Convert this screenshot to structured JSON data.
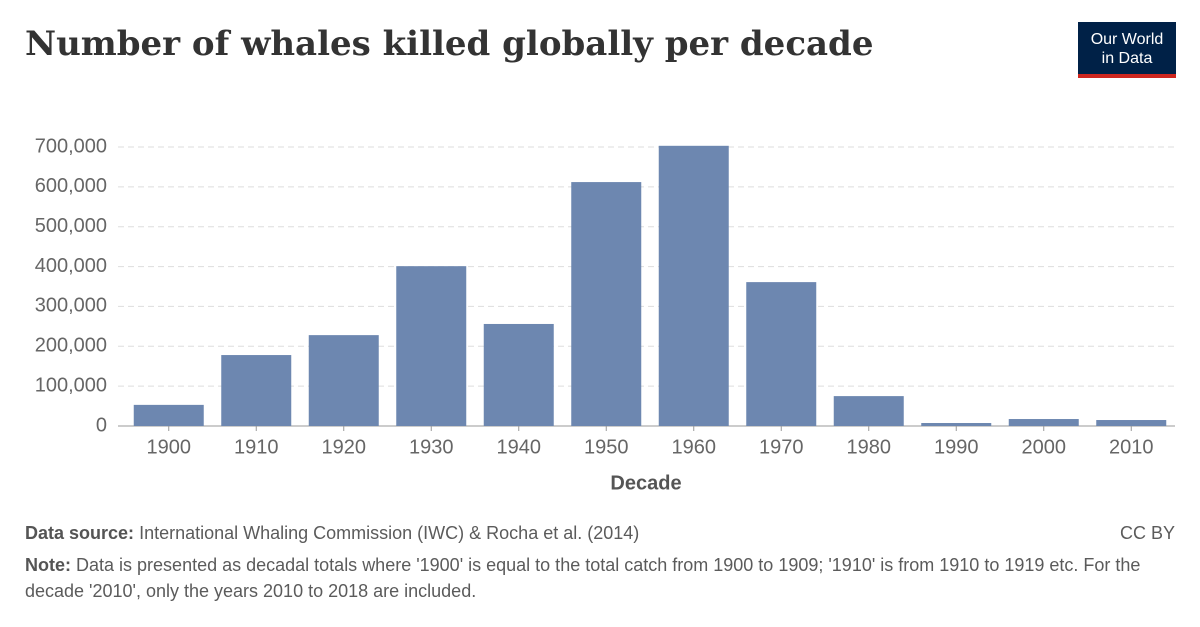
{
  "chart_data": {
    "type": "bar",
    "title": "Number of whales killed globally per decade",
    "logo": [
      "Our World",
      "in Data"
    ],
    "categories": [
      "1900",
      "1910",
      "1920",
      "1930",
      "1940",
      "1950",
      "1960",
      "1970",
      "1980",
      "1990",
      "2000",
      "2010"
    ],
    "values": [
      53000,
      178000,
      228000,
      401000,
      256000,
      612000,
      703000,
      361000,
      75000,
      7500,
      17500,
      15000
    ],
    "color": "#6d87b0",
    "xlabel": "Decade",
    "ylim": [
      0,
      700000
    ],
    "yticks": [
      0,
      {
        "value": 100000,
        "label": "100,000"
      },
      {
        "value": 200000,
        "label": "200,000"
      },
      {
        "value": 300000,
        "label": "300,000"
      },
      {
        "value": 400000,
        "label": "400,000"
      },
      {
        "value": 500000,
        "label": "500,000"
      },
      {
        "value": 600000,
        "label": "600,000"
      },
      {
        "value": 700000,
        "label": "700,000"
      }
    ],
    "grid": true,
    "source_label": "Data source:",
    "source": "International Whaling Commission (IWC) & Rocha et al. (2014)",
    "license": "CC BY",
    "note_label": "Note:",
    "note": "Data is presented as decadal totals where '1900' is equal to the total catch from 1900 to 1909; '1910' is from 1910 to 1919 etc. For the decade '2010', only the years 2010 to 2018 are included."
  }
}
